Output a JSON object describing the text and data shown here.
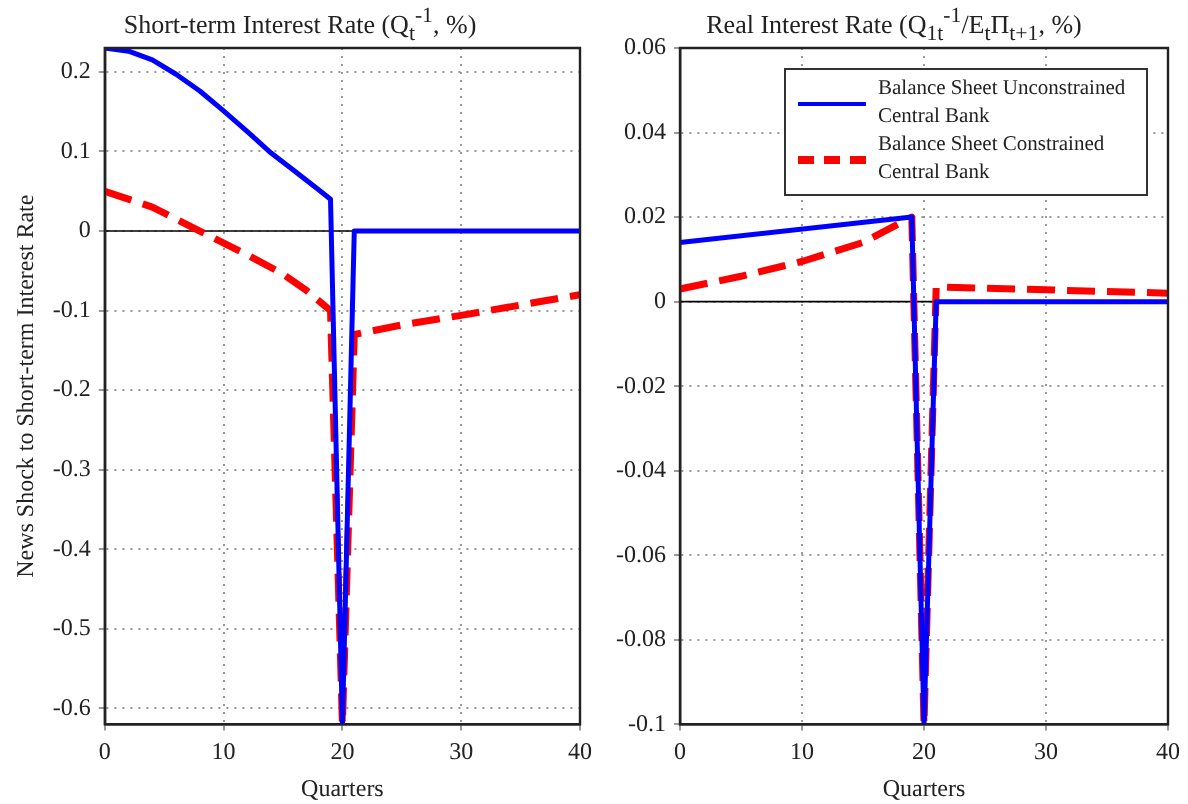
{
  "chart_data": [
    {
      "type": "line",
      "title": "Short-term Interest Rate (Q$_{t}$$^{-1}$, %)",
      "xlabel": "Quarters",
      "ylabel": "News Shock to Short-term Interest Rate",
      "xlim": [
        0,
        40
      ],
      "xticks": [
        0,
        10,
        20,
        30,
        40
      ],
      "ylim": [
        -0.62,
        0.23
      ],
      "yticks": [
        -0.6,
        -0.5,
        -0.4,
        -0.3,
        -0.2,
        -0.1,
        0,
        0.1,
        0.2
      ],
      "grid": true,
      "legend": false,
      "ref_lines": [
        {
          "axis": "y",
          "value": 0,
          "color": "#000000"
        }
      ],
      "series": [
        {
          "color": "#0000ff",
          "line_style": "solid",
          "x": [
            0,
            2,
            4,
            6,
            8,
            10,
            12,
            14,
            16,
            18,
            19,
            20,
            21,
            40
          ],
          "values": [
            0.23,
            0.226,
            0.215,
            0.197,
            0.176,
            0.151,
            0.125,
            0.098,
            0.075,
            0.052,
            0.04,
            -0.62,
            0,
            0
          ]
        },
        {
          "color": "#ff0000",
          "line_style": "dashed",
          "x": [
            0,
            4,
            8,
            12,
            15,
            17,
            19,
            20,
            21,
            25,
            30,
            35,
            40
          ],
          "values": [
            0.05,
            0.03,
            0,
            -0.03,
            -0.054,
            -0.075,
            -0.1,
            -0.62,
            -0.13,
            -0.118,
            -0.106,
            -0.093,
            -0.08
          ]
        }
      ]
    },
    {
      "type": "line",
      "title": "Real Interest Rate (Q$_{1t}$$^{-1}$/E$_{t}$Π$_{t+1}$, %)",
      "xlabel": "Quarters",
      "xlim": [
        0,
        40
      ],
      "xticks": [
        0,
        10,
        20,
        30,
        40
      ],
      "ylim": [
        -0.1,
        0.06
      ],
      "yticks": [
        -0.1,
        -0.08,
        -0.06,
        -0.04,
        -0.02,
        0,
        0.02,
        0.04,
        0.06
      ],
      "grid": true,
      "legend": "top right",
      "ref_lines": [
        {
          "axis": "y",
          "value": 0,
          "color": "#000000"
        }
      ],
      "series": [
        {
          "name": "Balance Sheet Unconstrained Central Bank",
          "color": "#0000ff",
          "line_style": "solid",
          "x": [
            0,
            19,
            20,
            21,
            40
          ],
          "values": [
            0.014,
            0.02,
            -0.1,
            0,
            0
          ]
        },
        {
          "name": "Balance Sheet Constrained Central Bank",
          "color": "#ff0000",
          "line_style": "dashed",
          "x": [
            0,
            5,
            10,
            15,
            19,
            20,
            21,
            40
          ],
          "values": [
            0.003,
            0.006,
            0.0095,
            0.014,
            0.02,
            -0.1,
            0.0035,
            0.002
          ]
        }
      ]
    }
  ]
}
